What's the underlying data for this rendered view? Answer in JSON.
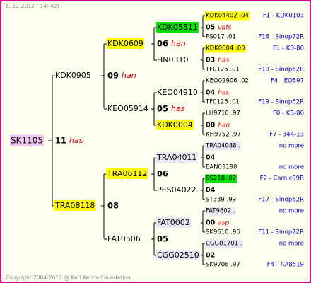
{
  "header": "8. 12-2012 ( 14: 42)",
  "footer": "Copyright 2004-2012 @ Karl Kehde Foundation.",
  "root": {
    "name": "SK1105",
    "year": "11",
    "note": "has",
    "bg": "#f4c6f4"
  },
  "generation1": [
    {
      "name": "KDK0905",
      "year": "09",
      "note": "han"
    },
    {
      "name": "TRA08118",
      "year": "08",
      "bg": "#ffff00"
    }
  ],
  "generation2": [
    {
      "name": "KDK0609",
      "year": "06",
      "note": "han",
      "bg": "#ffff00"
    },
    {
      "name": "KEO05914",
      "year": "05",
      "note": "has"
    },
    {
      "name": "TRA06112",
      "year": "06",
      "bg": "#ffff00"
    },
    {
      "name": "FAT0506",
      "year": "05"
    }
  ],
  "generation3": [
    {
      "name": "KDK05511",
      "bg": "#00e000",
      "year": "05",
      "note": "vdfs",
      "top": {
        "name": "KDK04402 .04",
        "bg": "#ffff00",
        "info": "F1 - KDK0103"
      },
      "bottom": {
        "name": "PS017 .01",
        "info": "F16 - Sinop72R"
      }
    },
    {
      "name": "HN0310",
      "year": "03",
      "note": "has",
      "top": {
        "name": "KDK0004 .00",
        "bg": "#ffff00",
        "info": "F1 - KB-80"
      },
      "bottom": {
        "name": "TF0125 .01",
        "info": "F19 - Sinop62R"
      }
    },
    {
      "name": "KEO04910",
      "year": "04",
      "note": "has",
      "top": {
        "name": "KEO02906 .02",
        "info": "F4 - EO597"
      },
      "bottom": {
        "name": "TF0125 .01",
        "info": "F19 - Sinop62R"
      }
    },
    {
      "name": "KDK0004",
      "bg": "#ffff00",
      "year": "00",
      "note": "han",
      "top": {
        "name": "LH9710 .97",
        "info": "F0 - KB-80"
      },
      "bottom": {
        "name": "KH9752 .97",
        "info": "F7 - 344-13"
      }
    },
    {
      "name": "TRA04011",
      "bg": "#e8e8f6",
      "year": "04",
      "top": {
        "name": "TRA04088 .",
        "bg": "#e8e8f6",
        "info": "no more"
      },
      "bottom": {
        "name": "EAN03198 .",
        "info": "no more"
      }
    },
    {
      "name": "PES04022",
      "year": "04",
      "top": {
        "name": "SS218 .02",
        "bg": "#00e000",
        "info": "F2 - Carnic99R"
      },
      "bottom": {
        "name": "ST339 .99",
        "info": "F17 - Sinop62R"
      }
    },
    {
      "name": "FAT0002",
      "bg": "#e8e8f6",
      "year": "00",
      "note": "asp",
      "top": {
        "name": "FAT9802 .",
        "bg": "#e8e8f6",
        "info": "no more"
      },
      "bottom": {
        "name": "SK9610 .96",
        "info": "F11 - Sinop72R"
      }
    },
    {
      "name": "CGG02510",
      "bg": "#e8e8f6",
      "year": "02",
      "top": {
        "name": "CGG01701 .",
        "bg": "#e8e8f6",
        "info": "no more"
      },
      "bottom": {
        "name": "SK9708 .97",
        "info": "F4 - AA8519"
      }
    }
  ]
}
